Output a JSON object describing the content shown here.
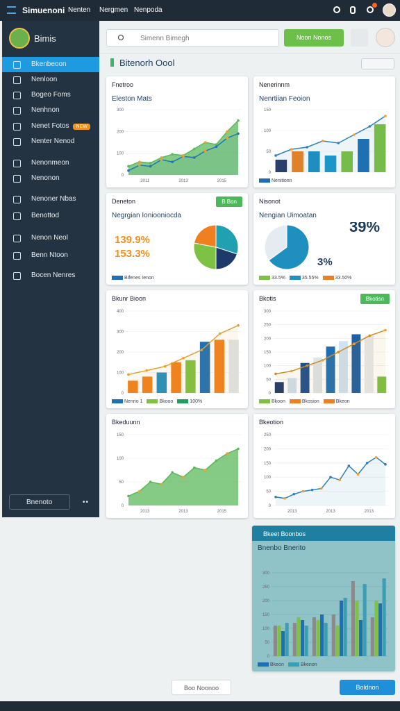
{
  "topbar": {
    "title": "Simuenoni",
    "nav": [
      "Nenten",
      "Nergmen",
      "Nenpoda"
    ]
  },
  "sidebar": {
    "brand": "Bimis",
    "items": [
      "Bkenbeoon",
      "Nenloon",
      "Bogeo Foms",
      "Nenhnon",
      "Nenet Fotos",
      "Nenter Nenod",
      "Nenonmeon",
      "Nenonon",
      "Nenoner Nbas",
      "Benottod",
      "Nenon Neol",
      "Benn Ntoon",
      "Bocen Nenres"
    ],
    "badge": "NEW",
    "footer": "Bnenoto"
  },
  "header": {
    "search": "Simenn Bimegh",
    "button": "Noon Nonos",
    "page_title": "Bitenorh Oool"
  },
  "cards": [
    {
      "title": "Fnetroo",
      "subtitle": "Eleston Mats",
      "chart": {
        "type": "area",
        "ylim": [
          0,
          300
        ],
        "yticks": [
          0,
          100,
          200,
          300
        ],
        "xlabels": [
          "2011",
          "2013",
          "2015"
        ],
        "series": [
          {
            "color": "#5cb85c",
            "fill": true,
            "values": [
              40,
              60,
              55,
              80,
              95,
              90,
              120,
              150,
              140,
              200,
              250
            ]
          },
          {
            "color": "#1f77b4",
            "values": [
              20,
              45,
              40,
              70,
              60,
              85,
              80,
              110,
              130,
              170,
              190
            ]
          }
        ]
      }
    },
    {
      "title": "Nenerinnm",
      "subtitle": "Nenrtiian Feoion",
      "chart": {
        "type": "combo",
        "ylim": [
          0,
          150
        ],
        "yticks": [
          0,
          50,
          100,
          150
        ],
        "bars": {
          "values": [
            30,
            50,
            50,
            40,
            50,
            80,
            115
          ],
          "colors": [
            "#2b3a67",
            "#f0801f",
            "#1f8fc0",
            "#1a9ac9",
            "#7dc242",
            "#1f6fb4",
            "#7dc242"
          ]
        },
        "line": {
          "color": "#2c7fb8",
          "values": [
            40,
            55,
            60,
            75,
            70,
            90,
            110,
            135
          ]
        }
      },
      "legend": [
        {
          "name": "Nenitionn",
          "color": "#1f6fb4"
        }
      ]
    },
    {
      "title": "Deneton",
      "subtitle": "Negrgian Ioniooniocda",
      "tag": "B Bon",
      "chart": {
        "type": "pie",
        "values": [
          30,
          20,
          28,
          22
        ],
        "colors": [
          "#20a0b0",
          "#1e3a6a",
          "#7dc242",
          "#f0801f"
        ],
        "stats": [
          "139.9%",
          "153.3%"
        ]
      },
      "legend": [
        {
          "name": "Bifenes Ienon",
          "color": "#1f6fb4"
        }
      ]
    },
    {
      "title": "Nisonot",
      "subtitle": "Nengian Uimoatan",
      "chart": {
        "type": "pie",
        "values": [
          65,
          35
        ],
        "colors": [
          "#1f8fc0",
          "#e4ecf2"
        ],
        "stats": [
          "39%",
          "3%"
        ]
      },
      "legend": [
        {
          "name": "33.5%",
          "color": "#7dc242"
        },
        {
          "name": "35.55%",
          "color": "#1f8fc0"
        },
        {
          "name": "33.50%",
          "color": "#f0801f"
        }
      ]
    },
    {
      "title": "Bkunr Bioon",
      "chart": {
        "type": "combo",
        "ylim": [
          0,
          400
        ],
        "yticks": [
          0,
          100,
          200,
          300,
          400
        ],
        "bars": {
          "values": [
            60,
            80,
            100,
            150,
            160,
            250,
            260,
            260
          ],
          "colors": [
            "#f0801f",
            "#f0801f",
            "#1f8fc0",
            "#f0801f",
            "#7dc242",
            "#1f6fb4",
            "#f0801f",
            "#dfe4e8"
          ]
        },
        "line": {
          "color": "#e0a030",
          "values": [
            90,
            110,
            130,
            170,
            210,
            290,
            330
          ]
        }
      },
      "legend": [
        {
          "name": "Nenrio 1",
          "color": "#1f6fb4"
        },
        {
          "name": "Bkooo",
          "color": "#7dc242"
        },
        {
          "name": "100%",
          "color": "#20a060"
        }
      ]
    },
    {
      "title": "Bkotis",
      "tag": "Bkotisn",
      "chart": {
        "type": "combo",
        "ylim": [
          0,
          300
        ],
        "yticks": [
          0,
          50,
          100,
          150,
          200,
          250,
          300
        ],
        "bars": {
          "values": [
            40,
            55,
            110,
            130,
            170,
            190,
            215,
            210,
            60
          ],
          "colors": [
            "#1e3a6a",
            "#cfe0ee",
            "#1f4f8f",
            "#dde4ea",
            "#1f6fb4",
            "#cfe3f2",
            "#1f5fa4",
            "#e6eaee",
            "#7dc242"
          ]
        },
        "line": {
          "color": "#d08c20",
          "values": [
            70,
            80,
            100,
            120,
            150,
            180,
            210,
            230
          ]
        }
      },
      "legend": [
        {
          "name": "Bkoon",
          "color": "#7dc242"
        },
        {
          "name": "Bkosion",
          "color": "#f0801f"
        },
        {
          "name": "Bkeon",
          "color": "#f0801f"
        }
      ]
    },
    {
      "title": "Bkeduunn",
      "chart": {
        "type": "area",
        "ylim": [
          0,
          150
        ],
        "yticks": [
          0,
          50,
          100,
          150
        ],
        "xlabels": [
          "2013",
          "2013",
          "2015"
        ],
        "series": [
          {
            "color": "#5cb85c",
            "fill": true,
            "values": [
              20,
              30,
              50,
              45,
              70,
              60,
              80,
              75,
              95,
              110,
              120
            ]
          }
        ]
      }
    },
    {
      "title": "Bkeotion",
      "chart": {
        "type": "area",
        "ylim": [
          0,
          250
        ],
        "yticks": [
          0,
          50,
          100,
          150,
          200,
          250
        ],
        "xlabels": [
          "2013",
          "2013",
          "2013"
        ],
        "series": [
          {
            "color": "#2c7fb8",
            "values": [
              30,
              25,
              40,
              50,
              55,
              60,
              100,
              90,
              140,
              110,
              150,
              170,
              145
            ]
          }
        ]
      }
    },
    {
      "title": "Bkeet Boonbos",
      "subtitle": "Bnenbo Bnerito",
      "chart": {
        "type": "grouped",
        "ylim": [
          0,
          350
        ],
        "yticks": [
          0,
          50,
          100,
          150,
          200,
          250,
          300
        ],
        "series": [
          {
            "color": "#8a8a8a",
            "values": [
              110,
              120,
              140,
              150,
              270,
              140
            ]
          },
          {
            "color": "#7dc242",
            "values": [
              110,
              140,
              130,
              110,
              200,
              200
            ]
          },
          {
            "color": "#1f6fb4",
            "values": [
              90,
              130,
              150,
              200,
              130,
              190
            ]
          },
          {
            "color": "#3a9fb5",
            "values": [
              120,
              110,
              120,
              210,
              260,
              280
            ]
          }
        ]
      },
      "legend": [
        {
          "name": "Bkeon",
          "color": "#1f6fb4"
        },
        {
          "name": "Bkenon",
          "color": "#3a9fb5"
        }
      ]
    }
  ],
  "footer": {
    "left": "Boo Noonoo",
    "right": "Boldnon"
  }
}
